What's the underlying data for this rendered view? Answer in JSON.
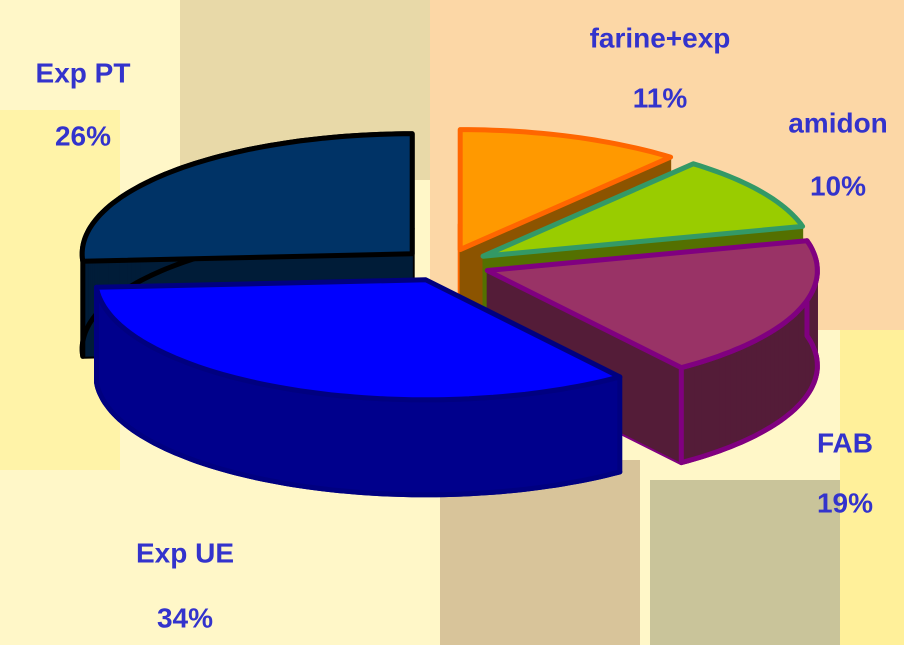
{
  "chart_data": {
    "type": "pie",
    "categories": [
      "farine+exp",
      "amidon",
      "FAB",
      "Exp UE",
      "Exp PT"
    ],
    "values": [
      11,
      10,
      19,
      34,
      26
    ],
    "value_labels": [
      "11%",
      "10%",
      "19%",
      "34%",
      "26%"
    ],
    "colors": [
      "#ff9900",
      "#99cc00",
      "#993366",
      "#0000ff",
      "#003366"
    ],
    "edge_colors": [
      "#ff6600",
      "#339966",
      "#800080",
      "#000080",
      "#000000"
    ]
  }
}
